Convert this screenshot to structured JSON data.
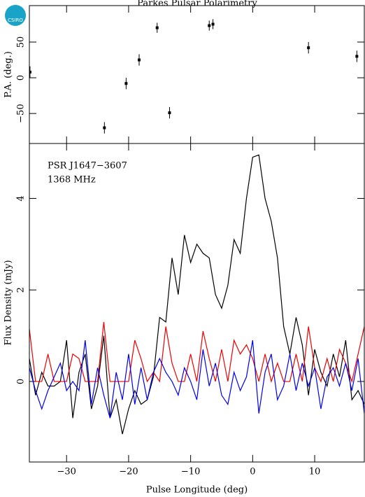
{
  "logo": "CSIRO",
  "chart_data": [
    {
      "type": "scatter",
      "title": "Parkes Pulsar Polarimetry",
      "ylabel": "P.A. (deg.)",
      "x": [
        -35.9,
        -23.9,
        -20.4,
        -18.3,
        -15.4,
        -13.4,
        -7.0,
        -6.4,
        9.0,
        16.8
      ],
      "values": [
        8,
        -70,
        -8,
        25,
        70,
        -49,
        73,
        75,
        42,
        30
      ],
      "errors": [
        8,
        8,
        8,
        8,
        7,
        8,
        7,
        7,
        8,
        8
      ],
      "color": "#000000",
      "xlim": [
        -36,
        18
      ],
      "xticks": [
        -30,
        -20,
        -10,
        0,
        10
      ],
      "ylim": [
        -92,
        101
      ],
      "yticks": [
        {
          "value": -50,
          "label": "−50"
        },
        0,
        50
      ]
    },
    {
      "type": "line",
      "xlabel": "Pulse Longitude (deg)",
      "ylabel": "Flux Density (mJy)",
      "annotations": [
        "PSR J1647−3607",
        "1368 MHz"
      ],
      "x": [
        -36,
        -35,
        -34,
        -33,
        -32,
        -31,
        -30,
        -29,
        -28,
        -27,
        -26,
        -25,
        -24,
        -23,
        -22,
        -21,
        -20,
        -19,
        -18,
        -17,
        -16,
        -15,
        -14,
        -13,
        -12,
        -11,
        -10,
        -9,
        -8,
        -7,
        -6,
        -5,
        -4,
        -3,
        -2,
        -1,
        0,
        1,
        2,
        3,
        4,
        5,
        6,
        7,
        8,
        9,
        10,
        11,
        12,
        13,
        14,
        15,
        16,
        17,
        18
      ],
      "series": [
        {
          "color": "#000000",
          "values": [
            0.5,
            -0.3,
            0.2,
            -0.1,
            -0.1,
            0.0,
            0.9,
            -0.8,
            0.2,
            0.6,
            -0.6,
            -0.1,
            1.0,
            -0.8,
            -0.4,
            -1.15,
            -0.6,
            -0.2,
            -0.5,
            -0.4,
            0.1,
            1.4,
            1.3,
            2.7,
            1.9,
            3.2,
            2.6,
            3.0,
            2.8,
            2.7,
            1.9,
            1.6,
            2.1,
            3.1,
            2.8,
            4.0,
            4.9,
            4.95,
            4.0,
            3.5,
            2.7,
            1.2,
            0.6,
            1.4,
            0.8,
            -0.3,
            0.7,
            0.2,
            -0.1,
            0.6,
            0.1,
            0.9,
            -0.4,
            -0.2,
            -0.5
          ]
        },
        {
          "color": "#ee0000",
          "values": [
            1.15,
            0,
            0,
            0.6,
            0,
            0,
            0,
            0.6,
            0.5,
            0,
            0,
            0,
            1.3,
            0,
            0,
            0,
            0,
            0.9,
            0.5,
            0,
            0.2,
            0,
            1.2,
            0.4,
            0,
            0,
            0.6,
            0,
            1.1,
            0.5,
            0,
            0.7,
            0,
            0.9,
            0.6,
            0.8,
            0.5,
            0,
            0.6,
            0,
            0.4,
            0,
            0,
            0.6,
            0,
            1.2,
            0.3,
            0,
            0.5,
            0,
            0.7,
            0.4,
            0,
            0.6,
            1.2
          ]
        },
        {
          "color": "#0000ee",
          "values": [
            0.3,
            -0.2,
            -0.6,
            -0.2,
            0.1,
            0.4,
            -0.2,
            0,
            -0.2,
            0.9,
            -0.5,
            0.3,
            -0.3,
            -0.8,
            0.2,
            -0.4,
            0.6,
            -0.5,
            0.3,
            -0.4,
            0.2,
            0.5,
            0.2,
            0,
            -0.3,
            0.3,
            0,
            -0.4,
            0.7,
            -0.1,
            0.4,
            -0.3,
            -0.5,
            0.2,
            -0.2,
            0.1,
            0.9,
            -0.7,
            0.2,
            0.6,
            -0.4,
            -0.1,
            0.6,
            -0.2,
            0.4,
            -0.1,
            0.3,
            -0.6,
            0.1,
            0.3,
            -0.1,
            0.4,
            -0.2,
            0.5,
            -0.7
          ]
        }
      ],
      "xlim": [
        -36,
        18
      ],
      "xticks": [
        {
          "value": -30,
          "label": "−30"
        },
        {
          "value": -20,
          "label": "−20"
        },
        {
          "value": -10,
          "label": "−10"
        },
        0,
        10
      ],
      "ylim": [
        -1.76,
        5.2
      ],
      "yticks": [
        0,
        2,
        4
      ]
    }
  ]
}
